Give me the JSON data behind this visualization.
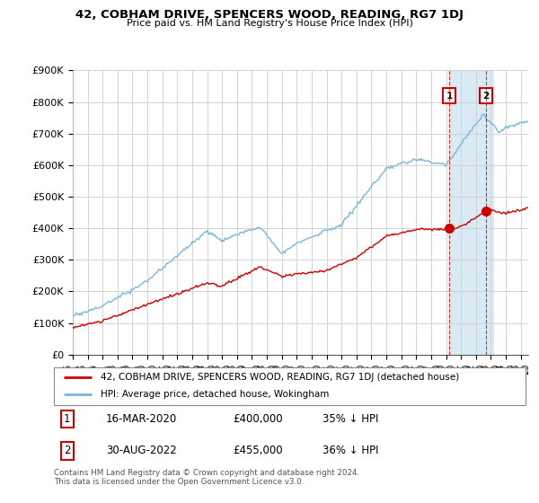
{
  "title": "42, COBHAM DRIVE, SPENCERS WOOD, READING, RG7 1DJ",
  "subtitle": "Price paid vs. HM Land Registry's House Price Index (HPI)",
  "ylabel_ticks": [
    "£0",
    "£100K",
    "£200K",
    "£300K",
    "£400K",
    "£500K",
    "£600K",
    "£700K",
    "£800K",
    "£900K"
  ],
  "ylim": [
    0,
    900000
  ],
  "xlim_start": 1995.0,
  "xlim_end": 2025.5,
  "hpi_color": "#7ab8d9",
  "price_color": "#cc0000",
  "shade_color": "#daeaf5",
  "marker1_date": 2020.21,
  "marker1_price": 400000,
  "marker2_date": 2022.67,
  "marker2_price": 455000,
  "legend_line1": "42, COBHAM DRIVE, SPENCERS WOOD, READING, RG7 1DJ (detached house)",
  "legend_line2": "HPI: Average price, detached house, Wokingham",
  "table_row1": [
    "1",
    "16-MAR-2020",
    "£400,000",
    "35% ↓ HPI"
  ],
  "table_row2": [
    "2",
    "30-AUG-2022",
    "£455,000",
    "36% ↓ HPI"
  ],
  "footnote": "Contains HM Land Registry data © Crown copyright and database right 2024.\nThis data is licensed under the Open Government Licence v3.0.",
  "background_color": "#ffffff",
  "grid_color": "#cccccc",
  "annotation_box_color": "#cc0000"
}
